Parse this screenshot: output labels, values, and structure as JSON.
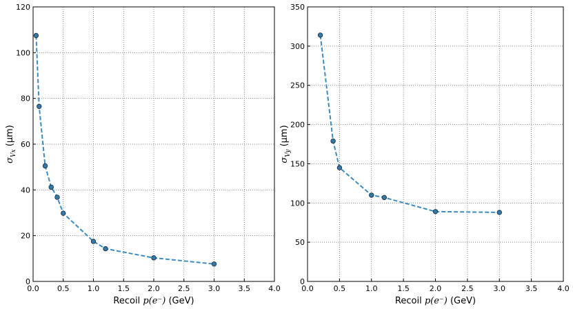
{
  "chart_data": [
    {
      "type": "line",
      "x": [
        0.05,
        0.1,
        0.2,
        0.3,
        0.4,
        0.5,
        1.0,
        1.2,
        2.0,
        3.0
      ],
      "values": [
        107.5,
        76.5,
        50.5,
        41.2,
        36.8,
        29.8,
        17.5,
        14.3,
        10.3,
        7.6
      ],
      "color": "#3a8bc0",
      "xlabel": {
        "prefix": "Recoil ",
        "math": "p(e⁻)",
        "suffix": " (GeV)"
      },
      "ylabel": {
        "symbol": "σ",
        "subscript": "Vx",
        "unit": " (μm)"
      },
      "xlim": [
        0,
        4
      ],
      "ylim": [
        0,
        120
      ],
      "xticks": [
        {
          "value": 0,
          "label": "0.0"
        },
        {
          "value": 0.5,
          "label": "0.5"
        },
        {
          "value": 1,
          "label": "1.0"
        },
        {
          "value": 1.5,
          "label": "1.5"
        },
        {
          "value": 2,
          "label": "2.0"
        },
        {
          "value": 2.5,
          "label": "2.5"
        },
        {
          "value": 3,
          "label": "3.0"
        },
        {
          "value": 3.5,
          "label": "3.5"
        },
        {
          "value": 4,
          "label": "4.0"
        }
      ],
      "yticks": [
        0,
        20,
        40,
        60,
        80,
        100,
        120
      ],
      "grid": true
    },
    {
      "type": "line",
      "x": [
        0.2,
        0.4,
        0.5,
        1.0,
        1.2,
        2.0,
        3.0
      ],
      "values": [
        314,
        179,
        145,
        110,
        107,
        89,
        88
      ],
      "color": "#3a8bc0",
      "xlabel": {
        "prefix": "Recoil ",
        "math": "p(e⁻)",
        "suffix": " (GeV)"
      },
      "ylabel": {
        "symbol": "σ",
        "subscript": "Vy",
        "unit": " (μm)"
      },
      "xlim": [
        0,
        4
      ],
      "ylim": [
        0,
        350
      ],
      "xticks": [
        {
          "value": 0,
          "label": "0.0"
        },
        {
          "value": 0.5,
          "label": "0.5"
        },
        {
          "value": 1,
          "label": "1.0"
        },
        {
          "value": 1.5,
          "label": "1.5"
        },
        {
          "value": 2,
          "label": "2.0"
        },
        {
          "value": 2.5,
          "label": "2.5"
        },
        {
          "value": 3,
          "label": "3.0"
        },
        {
          "value": 3.5,
          "label": "3.5"
        },
        {
          "value": 4,
          "label": "4.0"
        }
      ],
      "yticks": [
        0,
        50,
        100,
        150,
        200,
        250,
        300,
        350
      ],
      "grid": true
    }
  ]
}
